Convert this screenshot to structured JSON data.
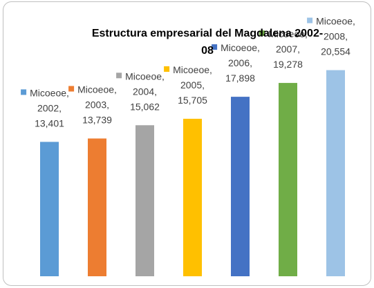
{
  "chart_data": {
    "type": "bar",
    "title": "Estructura empresarial del Magdalena 2002-08",
    "label_separator": ",",
    "categories": [
      "2002",
      "2003",
      "2004",
      "2005",
      "2006",
      "2007",
      "2008"
    ],
    "series": [
      {
        "name": "Micoeoe",
        "colors": [
          "#5b9bd5",
          "#ed7d31",
          "#a5a5a5",
          "#ffc000",
          "#4472c4",
          "#70ad47",
          "#9dc3e6"
        ],
        "values": [
          13401,
          13739,
          15062,
          15705,
          17898,
          19278,
          20554
        ],
        "value_labels": [
          "13,401",
          "13,739",
          "15,062",
          "15,705",
          "17,898",
          "19,278",
          "20,554"
        ]
      }
    ],
    "ylim": [
      0,
      25000
    ]
  }
}
